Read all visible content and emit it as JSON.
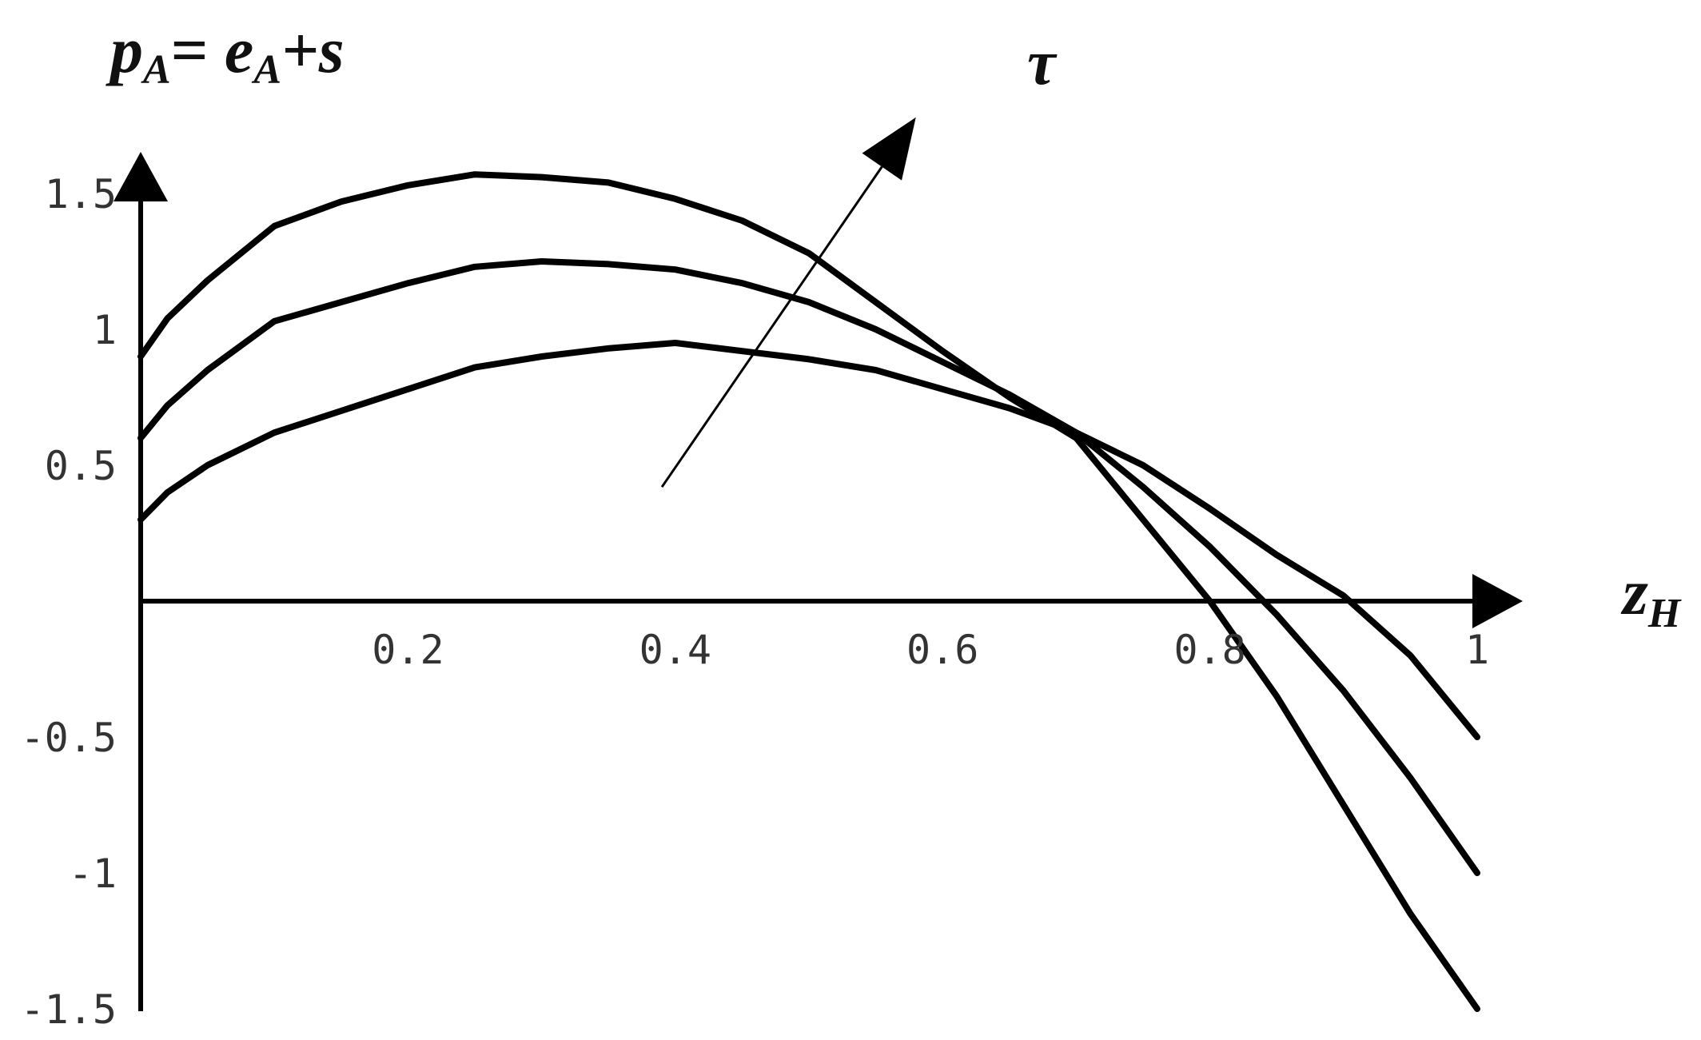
{
  "chart_data": {
    "type": "line",
    "ylabel": {
      "p": "p",
      "sub": "A",
      "eq": "= ",
      "e": "e",
      "sub2": "A",
      "rest": "+s"
    },
    "xlabel": {
      "z": "z",
      "sub": "H"
    },
    "parameter_label": "τ",
    "xlim": [
      0,
      1
    ],
    "ylim": [
      -1.5,
      1.5
    ],
    "x_ticks": [
      {
        "value": 0.2,
        "label": "0.2"
      },
      {
        "value": 0.4,
        "label": "0.4"
      },
      {
        "value": 0.6,
        "label": "0.6"
      },
      {
        "value": 0.8,
        "label": "0.8"
      },
      {
        "value": 1,
        "label": "1"
      }
    ],
    "y_ticks": [
      {
        "value": 1.5,
        "label": "1.5"
      },
      {
        "value": 1,
        "label": "1"
      },
      {
        "value": 0.5,
        "label": "0.5"
      },
      {
        "value": -0.5,
        "label": "-0.5"
      },
      {
        "value": -1,
        "label": "-1"
      },
      {
        "value": -1.5,
        "label": "-1.5"
      }
    ],
    "series": [
      {
        "x": [
          0,
          0.02,
          0.05,
          0.1,
          0.15,
          0.2,
          0.25,
          0.3,
          0.35,
          0.4,
          0.45,
          0.5,
          0.55,
          0.6,
          0.65,
          0.7,
          0.75,
          0.8,
          0.85,
          0.9,
          0.95,
          1
        ],
        "y": [
          0.3,
          0.4,
          0.5,
          0.62,
          0.7,
          0.78,
          0.86,
          0.9,
          0.93,
          0.95,
          0.92,
          0.89,
          0.85,
          0.78,
          0.71,
          0.62,
          0.5,
          0.34,
          0.17,
          0.02,
          -0.2,
          -0.5
        ]
      },
      {
        "x": [
          0,
          0.02,
          0.05,
          0.1,
          0.15,
          0.2,
          0.25,
          0.3,
          0.35,
          0.4,
          0.45,
          0.5,
          0.55,
          0.6,
          0.65,
          0.7,
          0.75,
          0.8,
          0.85,
          0.9,
          0.95,
          1
        ],
        "y": [
          0.6,
          0.72,
          0.85,
          1.03,
          1.1,
          1.17,
          1.23,
          1.25,
          1.24,
          1.22,
          1.17,
          1.1,
          1.0,
          0.88,
          0.76,
          0.62,
          0.42,
          0.2,
          -0.05,
          -0.33,
          -0.65,
          -1.0
        ]
      },
      {
        "x": [
          0,
          0.02,
          0.05,
          0.1,
          0.15,
          0.2,
          0.25,
          0.3,
          0.35,
          0.4,
          0.45,
          0.5,
          0.55,
          0.6,
          0.65,
          0.7,
          0.75,
          0.8,
          0.85,
          0.9,
          0.95,
          1
        ],
        "y": [
          0.9,
          1.04,
          1.18,
          1.38,
          1.47,
          1.53,
          1.57,
          1.56,
          1.54,
          1.48,
          1.4,
          1.28,
          1.1,
          0.92,
          0.75,
          0.6,
          0.3,
          0.0,
          -0.35,
          -0.75,
          -1.15,
          -1.5
        ]
      }
    ],
    "arrow": {
      "from": [
        0.39,
        0.42
      ],
      "to": [
        0.58,
        1.78
      ]
    }
  }
}
